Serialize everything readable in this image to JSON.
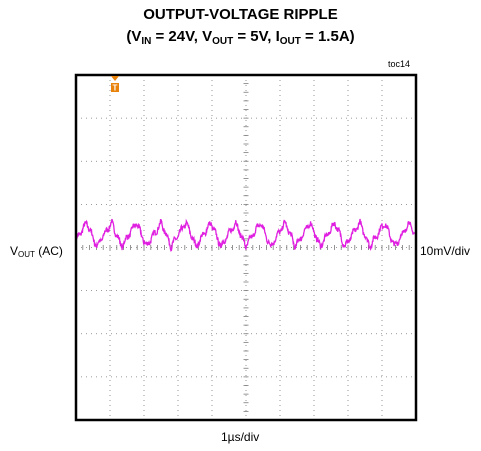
{
  "chart_data": {
    "type": "line",
    "title_line1": "OUTPUT-VOLTAGE RIPPLE",
    "title_line2": {
      "open": "(V",
      "vin_sub": "IN",
      "vin_val": " = 24V, V",
      "vout_sub": "OUT",
      "vout_val": " = 5V, I",
      "iout_sub": "OUT",
      "iout_val": " = 1.5A)"
    },
    "figure_id": "toc14",
    "xlabel": "1µs/div",
    "ylabel_main": "V",
    "ylabel_sub": "OUT",
    "ylabel_tail": " (AC)",
    "y_scale_label": "10mV/div",
    "trigger_marker": "T",
    "grid": {
      "x_divisions": 10,
      "y_divisions": 8
    },
    "x_range_div": [
      0,
      10
    ],
    "y_range_div": [
      -4,
      4
    ],
    "series": [
      {
        "color": "#e020e0",
        "ripple_period_div": 0.73,
        "ripple_peak_to_peak_div": 0.55,
        "offset_div": 0.3
      }
    ],
    "colors": {
      "trace": "#e020e0",
      "marker": "#e8820a",
      "frame": "#000000",
      "grid": "#7a7a7a"
    }
  }
}
